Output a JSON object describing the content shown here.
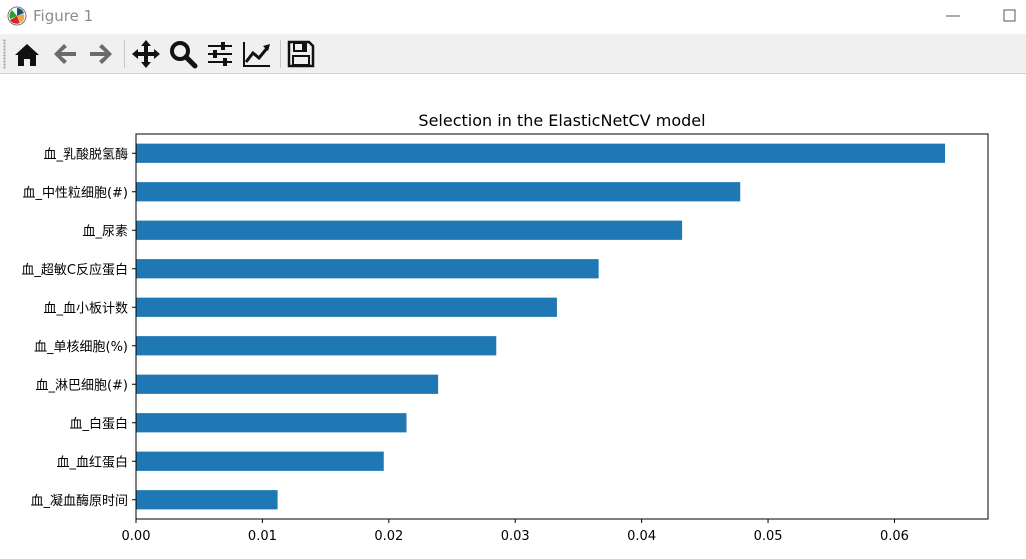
{
  "window": {
    "title": "Figure 1"
  },
  "toolbar": {
    "buttons": [
      {
        "name": "home",
        "icon": "home-icon"
      },
      {
        "name": "back",
        "icon": "arrow-left-icon"
      },
      {
        "name": "forward",
        "icon": "arrow-right-icon"
      },
      {
        "name": "pan",
        "icon": "move-icon"
      },
      {
        "name": "zoom",
        "icon": "magnifier-icon"
      },
      {
        "name": "configure-subplots",
        "icon": "sliders-icon"
      },
      {
        "name": "edit-axis",
        "icon": "line-chart-icon"
      },
      {
        "name": "save",
        "icon": "floppy-disk-icon"
      }
    ]
  },
  "chart_data": {
    "type": "bar",
    "orientation": "horizontal",
    "title": "Selection in the ElasticNetCV model",
    "xlabel": "",
    "ylabel": "",
    "categories": [
      "血_乳酸脱氢酶",
      "血_中性粒细胞(#)",
      "血_尿素",
      "血_超敏C反应蛋白",
      "血_血小板计数",
      "血_单核细胞(%)",
      "血_淋巴细胞(#)",
      "血_白蛋白",
      "血_血红蛋白",
      "血_凝血酶原时间"
    ],
    "values": [
      0.064,
      0.0478,
      0.0432,
      0.0366,
      0.0333,
      0.0285,
      0.0239,
      0.0214,
      0.0196,
      0.0112
    ],
    "xlim": [
      0,
      0.0674
    ],
    "xticks": [
      "0.00",
      "0.01",
      "0.02",
      "0.03",
      "0.04",
      "0.05",
      "0.06"
    ],
    "xtick_values": [
      0,
      0.01,
      0.02,
      0.03,
      0.04,
      0.05,
      0.06
    ],
    "bar_color": "#1f77b4",
    "grid": false,
    "legend": "none"
  }
}
